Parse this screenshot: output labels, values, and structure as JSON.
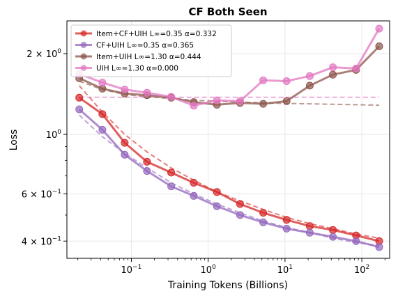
{
  "chart_data": {
    "type": "line",
    "title": "CF Both Seen",
    "xlabel": "Training Tokens (Billions)",
    "ylabel": "Loss",
    "x_scale": "log",
    "y_scale": "log",
    "xlim": [
      0.0145,
      230
    ],
    "ylim": [
      0.345,
      2.65
    ],
    "grid": true,
    "legend_position": "top-left",
    "x_ticks": [
      {
        "value": 0.1,
        "label": "10",
        "exp": "−1"
      },
      {
        "value": 1,
        "label": "10",
        "exp": "0"
      },
      {
        "value": 10,
        "label": "10",
        "exp": "1"
      },
      {
        "value": 100,
        "label": "10",
        "exp": "2"
      }
    ],
    "y_ticks": [
      {
        "value": 0.4,
        "label": "4 × 10",
        "exp": "−1"
      },
      {
        "value": 0.6,
        "label": "6 × 10",
        "exp": "−1"
      },
      {
        "value": 1,
        "label": "10",
        "exp": "0"
      },
      {
        "value": 2,
        "label": "2 × 10",
        "exp": "0"
      }
    ],
    "x": [
      0.021,
      0.042,
      0.082,
      0.16,
      0.33,
      0.65,
      1.3,
      2.6,
      5.2,
      10.5,
      21,
      42,
      84,
      168
    ],
    "series": [
      {
        "name": "Item+CF+UIH L∞=0.35 α=0.332",
        "color": "#d62728",
        "values": [
          1.37,
          1.19,
          0.93,
          0.79,
          0.72,
          0.66,
          0.61,
          0.55,
          0.51,
          0.48,
          0.455,
          0.44,
          0.42,
          0.4
        ],
        "fit": [
          1.52,
          1.21,
          1.0,
          0.86,
          0.75,
          0.675,
          0.61,
          0.565,
          0.525,
          0.49,
          0.465,
          0.445,
          0.425,
          0.41
        ]
      },
      {
        "name": "CF+UIH L∞=0.35 α=0.365",
        "color": "#9467bd",
        "values": [
          1.24,
          1.04,
          0.84,
          0.73,
          0.64,
          0.59,
          0.54,
          0.5,
          0.47,
          0.445,
          0.43,
          0.415,
          0.4,
          0.38
        ],
        "fit": [
          1.18,
          0.98,
          0.85,
          0.75,
          0.66,
          0.6,
          0.55,
          0.51,
          0.475,
          0.45,
          0.43,
          0.41,
          0.395,
          0.385
        ]
      },
      {
        "name": "Item+UIH L∞=1.30 α=0.444",
        "color": "#8c564b",
        "values": [
          1.62,
          1.48,
          1.42,
          1.4,
          1.37,
          1.32,
          1.29,
          1.31,
          1.3,
          1.33,
          1.52,
          1.67,
          1.74,
          2.13
        ],
        "fit": [
          1.58,
          1.47,
          1.41,
          1.38,
          1.36,
          1.34,
          1.33,
          1.32,
          1.31,
          1.305,
          1.3,
          1.295,
          1.29,
          1.285
        ]
      },
      {
        "name": "UIH L∞=1.30 α=0.000",
        "color": "#e377c2",
        "values": [
          1.68,
          1.56,
          1.47,
          1.43,
          1.38,
          1.28,
          1.34,
          1.33,
          1.59,
          1.58,
          1.65,
          1.78,
          1.76,
          2.48
        ],
        "fit": [
          1.375,
          1.375,
          1.375,
          1.375,
          1.375,
          1.375,
          1.375,
          1.375,
          1.375,
          1.375,
          1.375,
          1.375,
          1.375,
          1.375
        ]
      }
    ]
  }
}
